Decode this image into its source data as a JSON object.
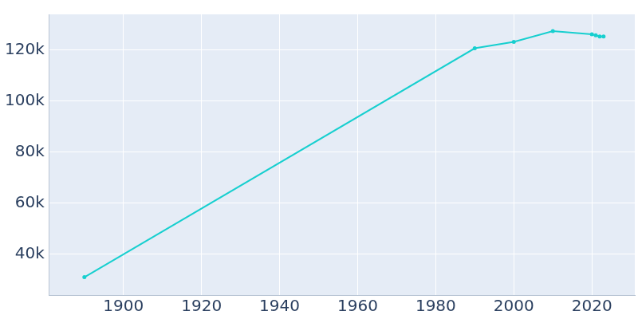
{
  "chart_data": {
    "type": "line",
    "x": [
      1890,
      1990,
      2000,
      2010,
      2020,
      2021,
      2022,
      2023
    ],
    "values": [
      31000,
      120700,
      123200,
      127400,
      126200,
      125800,
      125300,
      125300
    ],
    "color": "#17cfcf",
    "marker": "circle",
    "xlim": [
      1881,
      2031
    ],
    "xticks": [
      1900,
      1920,
      1940,
      1960,
      1980,
      2000,
      2020
    ],
    "ylim": [
      24000,
      134000
    ],
    "yticks": [
      {
        "value": 40000,
        "label": "40k"
      },
      {
        "value": 60000,
        "label": "60k"
      },
      {
        "value": 80000,
        "label": "80k"
      },
      {
        "value": 100000,
        "label": "100k"
      },
      {
        "value": 120000,
        "label": "120k"
      }
    ],
    "grid": true
  }
}
